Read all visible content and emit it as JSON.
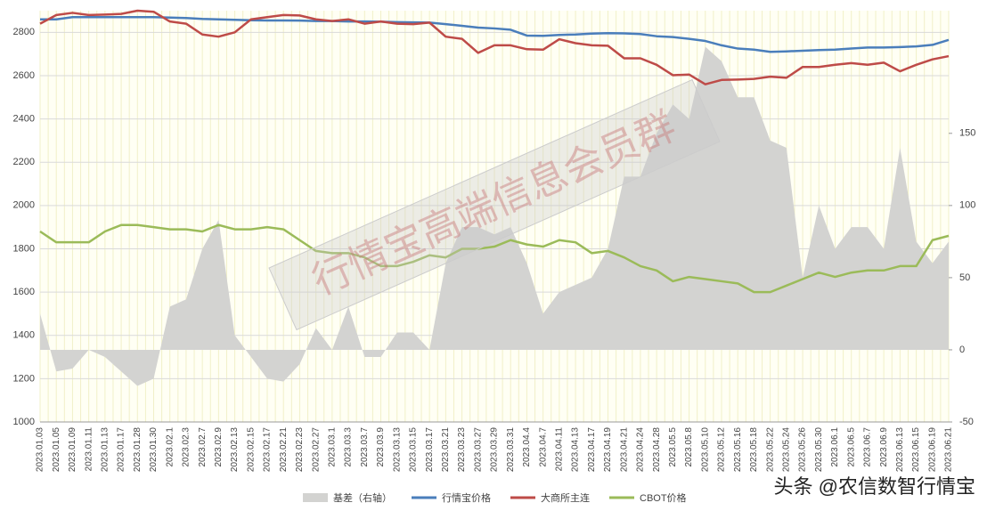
{
  "chart_data": {
    "type": "line",
    "categories": [
      "2023.01.03",
      "2023.01.05",
      "2023.01.09",
      "2023.01.11",
      "2023.01.13",
      "2023.01.17",
      "2023.01.28",
      "2023.01.30",
      "2023.02.1",
      "2023.02.3",
      "2023.02.7",
      "2023.02.9",
      "2023.02.13",
      "2023.02.15",
      "2023.02.17",
      "2023.02.21",
      "2023.02.23",
      "2023.02.27",
      "2023.03.1",
      "2023.03.3",
      "2023.03.7",
      "2023.03.9",
      "2023.03.13",
      "2023.03.15",
      "2023.03.17",
      "2023.03.21",
      "2023.03.23",
      "2023.03.27",
      "2023.03.29",
      "2023.03.31",
      "2023.04.4",
      "2023.04.7",
      "2023.04.11",
      "2023.04.13",
      "2023.04.17",
      "2023.04.19",
      "2023.04.21",
      "2023.04.24",
      "2023.04.28",
      "2023.05.5",
      "2023.05.8",
      "2023.05.10",
      "2023.05.12",
      "2023.05.16",
      "2023.05.18",
      "2023.05.22",
      "2023.05.24",
      "2023.05.26",
      "2023.05.30",
      "2023.06.1",
      "2023.06.5",
      "2023.06.7",
      "2023.06.9",
      "2023.06.13",
      "2023.06.15",
      "2023.06.19",
      "2023.06.21"
    ],
    "series": [
      {
        "name": "基差（右轴）",
        "type": "area",
        "axis": "y2",
        "color": "#d3d3d1",
        "values": [
          25,
          -15,
          -13,
          0,
          -5,
          -15,
          -25,
          -20,
          30,
          35,
          70,
          90,
          10,
          -5,
          -20,
          -22,
          -10,
          15,
          0,
          30,
          -5,
          -5,
          12,
          12,
          0,
          60,
          85,
          85,
          80,
          85,
          60,
          25,
          40,
          45,
          50,
          70,
          120,
          120,
          150,
          170,
          160,
          210,
          200,
          175,
          175,
          145,
          140,
          50,
          100,
          70,
          85,
          85,
          70,
          140,
          75,
          60,
          75
        ]
      },
      {
        "name": "行情宝价格",
        "color": "#4a7ebb",
        "values": [
          2860,
          2860,
          2870,
          2870,
          2870,
          2870,
          2870,
          2870,
          2868,
          2866,
          2862,
          2860,
          2858,
          2856,
          2855,
          2855,
          2854,
          2852,
          2852,
          2850,
          2850,
          2849,
          2847,
          2846,
          2845,
          2838,
          2830,
          2822,
          2818,
          2812,
          2785,
          2784,
          2788,
          2790,
          2794,
          2796,
          2795,
          2792,
          2782,
          2778,
          2770,
          2760,
          2740,
          2725,
          2720,
          2710,
          2712,
          2715,
          2718,
          2720,
          2725,
          2730,
          2730,
          2732,
          2735,
          2742,
          2765
        ]
      },
      {
        "name": "大商所主连",
        "color": "#be4b48",
        "values": [
          2840,
          2880,
          2890,
          2880,
          2882,
          2885,
          2900,
          2895,
          2850,
          2840,
          2790,
          2780,
          2800,
          2860,
          2870,
          2880,
          2878,
          2860,
          2852,
          2860,
          2840,
          2850,
          2840,
          2838,
          2845,
          2780,
          2770,
          2705,
          2740,
          2740,
          2722,
          2720,
          2768,
          2750,
          2740,
          2738,
          2680,
          2680,
          2650,
          2602,
          2605,
          2560,
          2580,
          2582,
          2585,
          2595,
          2590,
          2640,
          2640,
          2650,
          2658,
          2650,
          2660,
          2620,
          2650,
          2675,
          2690
        ]
      },
      {
        "name": "CBOT价格",
        "color": "#9bbb59",
        "values": [
          1880,
          1830,
          1830,
          1830,
          1880,
          1910,
          1910,
          1900,
          1890,
          1890,
          1880,
          1910,
          1890,
          1890,
          1900,
          1890,
          1840,
          1790,
          1780,
          1780,
          1760,
          1720,
          1720,
          1740,
          1770,
          1760,
          1800,
          1800,
          1810,
          1840,
          1820,
          1810,
          1840,
          1830,
          1780,
          1790,
          1760,
          1720,
          1700,
          1650,
          1670,
          1660,
          1650,
          1640,
          1600,
          1600,
          1630,
          1660,
          1690,
          1670,
          1690,
          1700,
          1700,
          1720,
          1720,
          1840,
          1860
        ]
      }
    ],
    "ylim": [
      1000,
      2900
    ],
    "yticks": [
      1000,
      1200,
      1400,
      1600,
      1800,
      2000,
      2200,
      2400,
      2600,
      2800
    ],
    "y2lim": [
      -50,
      235
    ],
    "y2ticks": [
      -50,
      0,
      50,
      100,
      150
    ],
    "grid": true,
    "legend": "bottom",
    "annotations": [
      "行情宝高端信息会员群",
      "头条 @农信数智行情宝"
    ]
  }
}
